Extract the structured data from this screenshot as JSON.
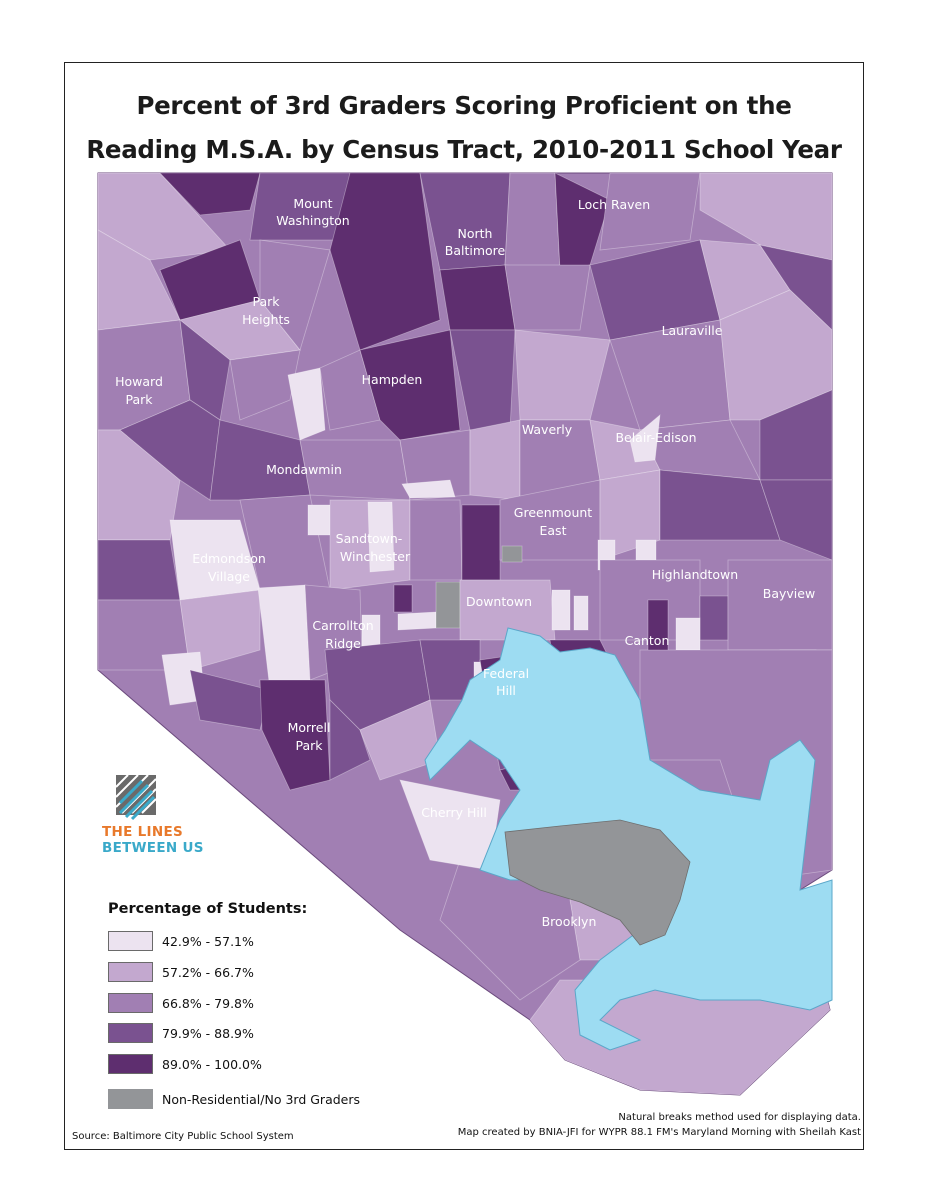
{
  "title": {
    "line1": "Percent of 3rd Graders Scoring Proficient on the",
    "line2": "Reading M.S.A. by Census Tract, 2010-2011 School Year"
  },
  "neighborhoods": {
    "mount_washington_1": "Mount",
    "mount_washington_2": "Washington",
    "north_baltimore_1": "North",
    "north_baltimore_2": "Baltimore",
    "loch_raven": "Loch Raven",
    "park_heights_1": "Park",
    "park_heights_2": "Heights",
    "lauraville": "Lauraville",
    "howard_park_1": "Howard",
    "howard_park_2": "Park",
    "hampden": "Hampden",
    "waverly": "Waverly",
    "belair_edison": "Belair-Edison",
    "mondawmin": "Mondawmin",
    "greenmount_east_1": "Greenmount",
    "greenmount_east_2": "East",
    "sandtown_1": "Sandtown-",
    "sandtown_2": "Winchester",
    "edmondson_1": "Edmondson",
    "edmondson_2": "Village",
    "highlandtown": "Highlandtown",
    "downtown": "Downtown",
    "bayview": "Bayview",
    "carrollton_1": "Carrollton",
    "carrollton_2": "Ridge",
    "canton": "Canton",
    "federal_hill_1": "Federal",
    "federal_hill_2": "Hill",
    "morrell_park_1": "Morrell",
    "morrell_park_2": "Park",
    "cherry_hill": "Cherry Hill",
    "brooklyn": "Brooklyn"
  },
  "logo": {
    "line1": "THE LINES",
    "line2": "BETWEEN US",
    "color1": "#e8792b",
    "color2": "#3aa9c9"
  },
  "legend": {
    "title": "Percentage of Students:",
    "items": [
      {
        "label": "42.9% - 57.1%",
        "color": "#ece3f0"
      },
      {
        "label": "57.2% - 66.7%",
        "color": "#c3a8cf"
      },
      {
        "label": "66.8% - 79.8%",
        "color": "#a17fb3"
      },
      {
        "label": "79.9% - 88.9%",
        "color": "#7a5290"
      },
      {
        "label": "89.0% - 100.0%",
        "color": "#5e2e6f"
      },
      {
        "label": "Non-Residential/No 3rd Graders",
        "color": "#939598"
      }
    ]
  },
  "water_color": "#9ddcf2",
  "source": "Source: Baltimore City Public School System",
  "notes": {
    "line1": "Natural breaks method used for displaying data.",
    "line2": "Map created by BNIA-JFI for WYPR 88.1 FM's Maryland Morning with Sheilah Kast"
  }
}
